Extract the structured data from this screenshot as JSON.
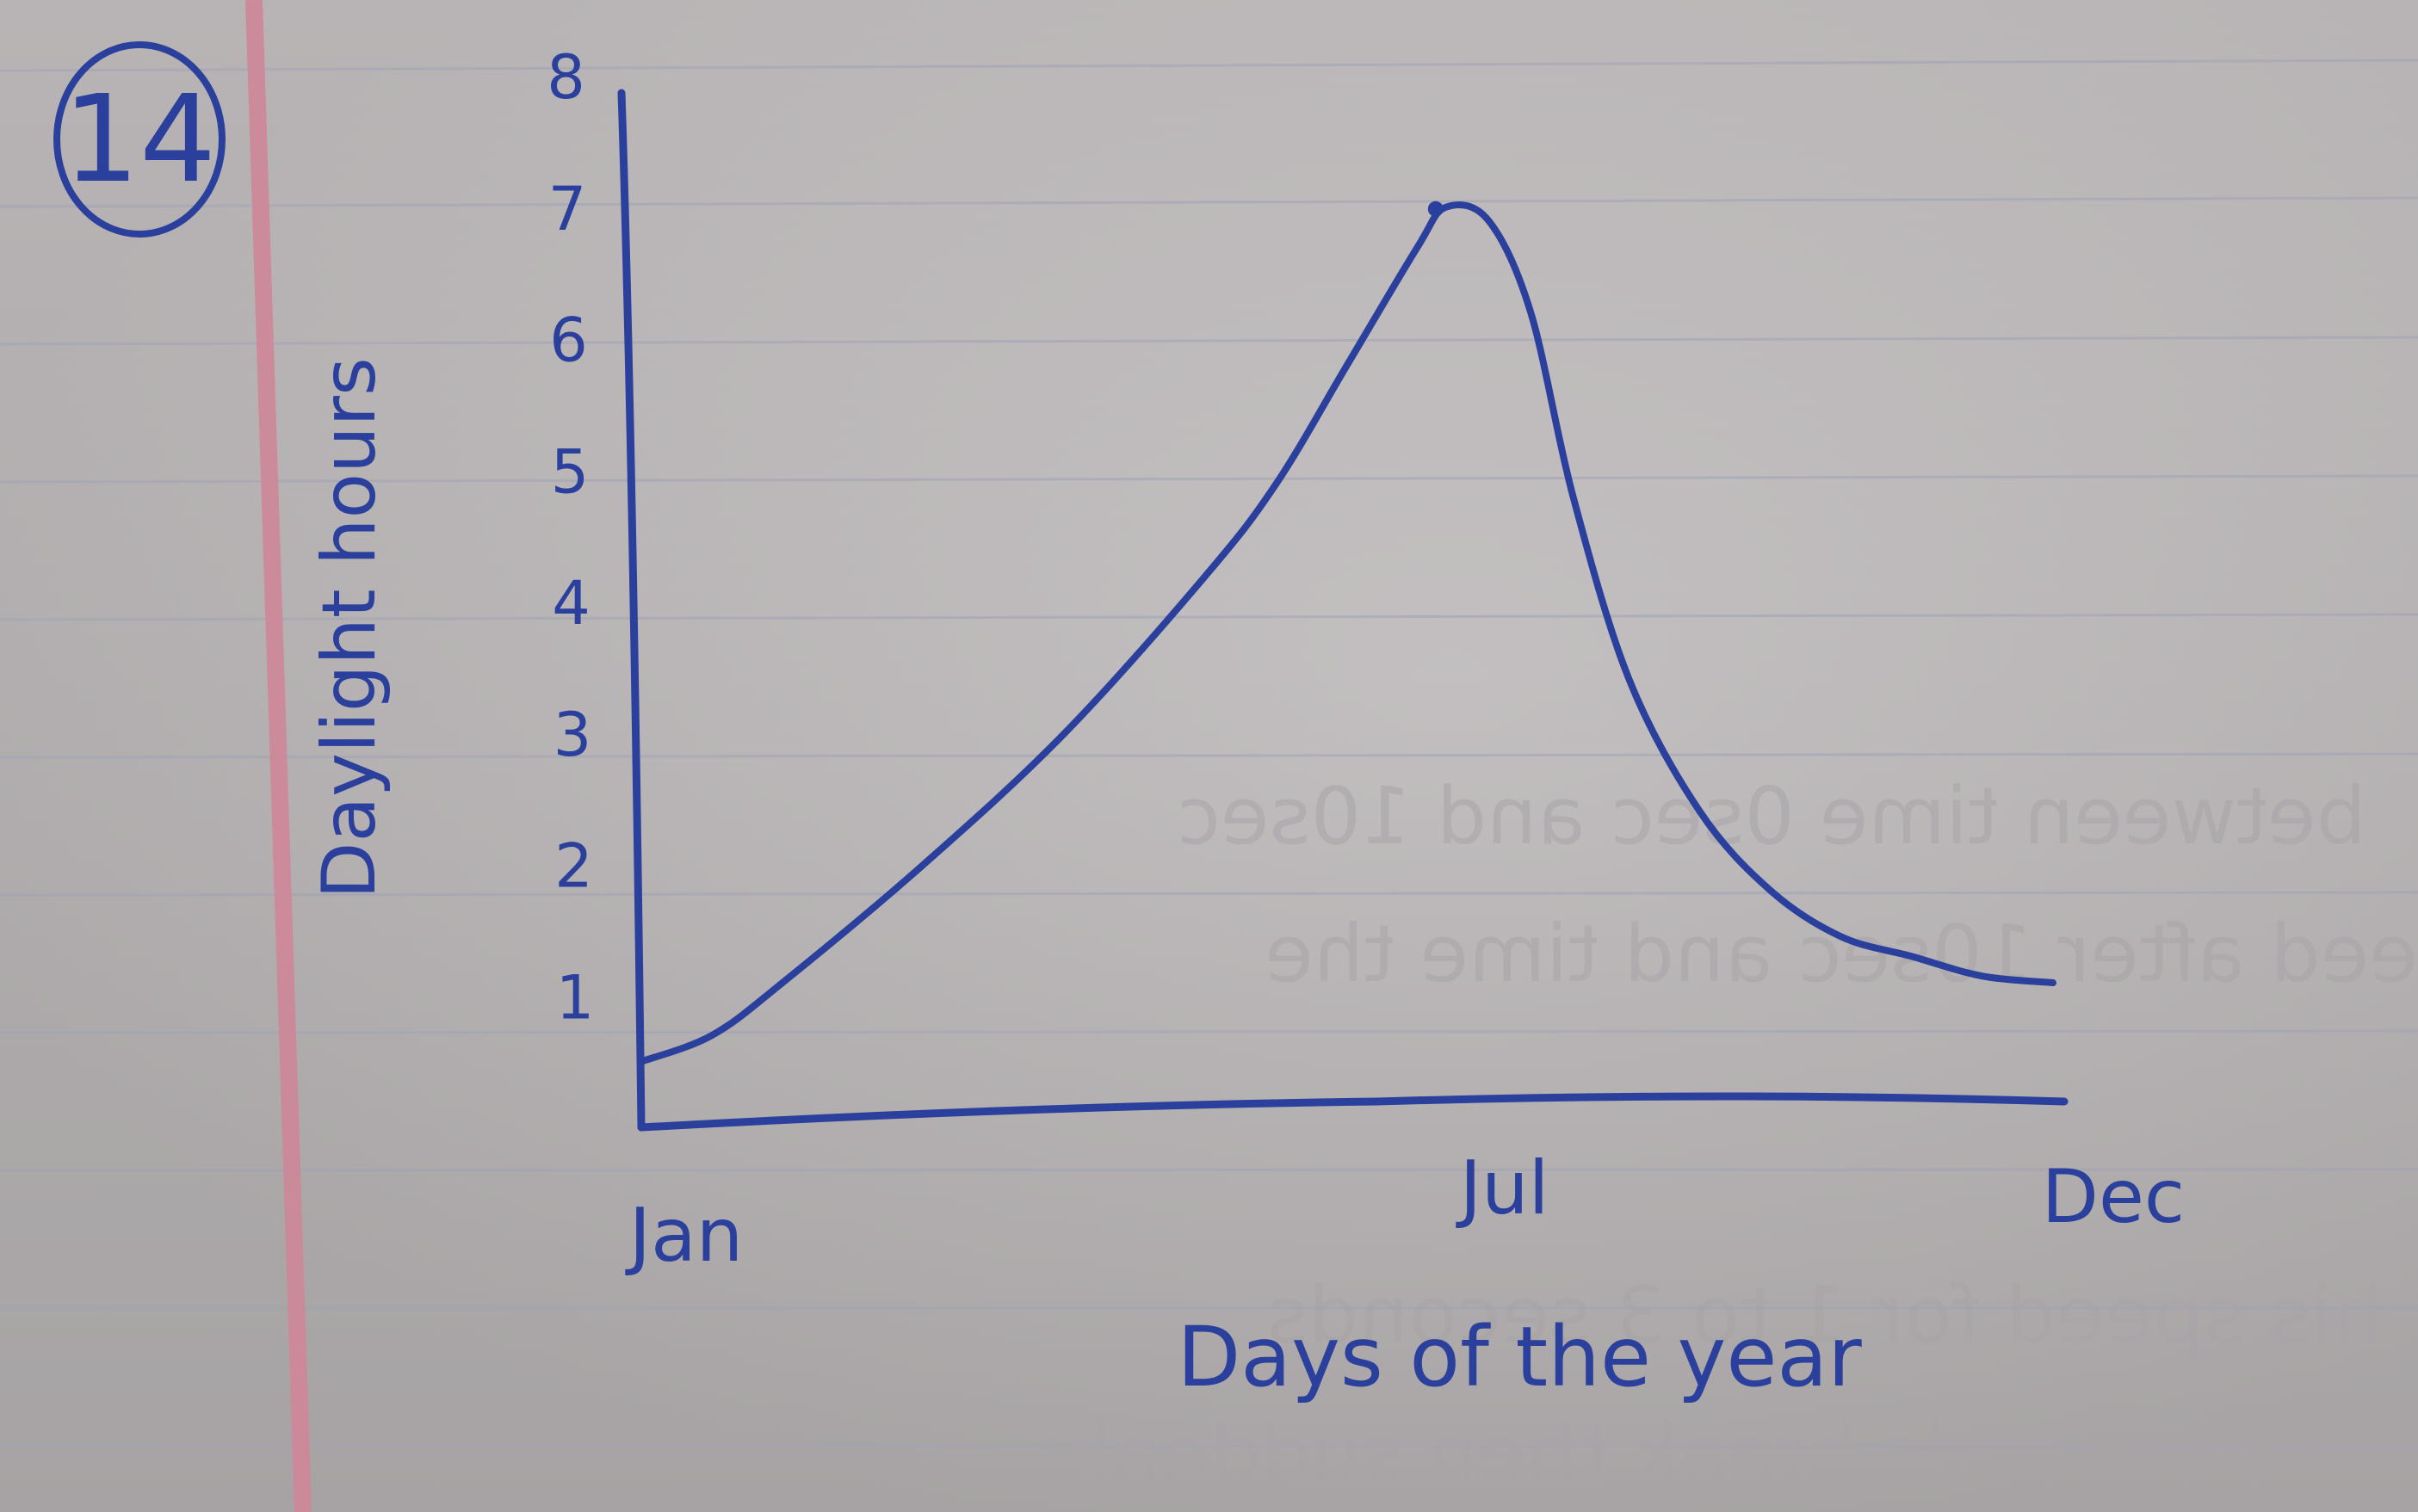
{
  "problem_number": "14",
  "ink_color": "#2b3f9c",
  "margin_color": "#cf8798",
  "chart_data": {
    "type": "line",
    "title": "",
    "xlabel": "Days of the year",
    "ylabel": "Daylight hours",
    "x_tick_labels": [
      "Jan",
      "Jul",
      "Dec"
    ],
    "x_tick_positions": [
      0,
      0.59,
      1
    ],
    "y_ticks": [
      1,
      2,
      3,
      4,
      5,
      6,
      7,
      8
    ],
    "y_range": [
      0,
      8
    ],
    "x_range": [
      0,
      1
    ],
    "grid": false,
    "legend": "none",
    "series": [
      {
        "x": [
          0,
          0.05,
          0.1,
          0.2,
          0.3,
          0.4,
          0.45,
          0.5,
          0.55,
          0.57,
          0.6,
          0.63,
          0.66,
          0.7,
          0.75,
          0.8,
          0.85,
          0.9,
          0.95,
          1.0
        ],
        "values": [
          0.5,
          0.7,
          1.1,
          2.0,
          3.0,
          4.2,
          4.9,
          5.8,
          6.7,
          7.0,
          6.9,
          6.2,
          4.8,
          3.4,
          2.4,
          1.8,
          1.45,
          1.3,
          1.15,
          1.1
        ]
      }
    ]
  },
  "bleed_through": {
    "line1": "between time 0sec and 10sec",
    "line2": "eed after 10sec and time the",
    "line3": "his speed for 1 to 3 seconds",
    "line4": "13 seconds break then suddenly"
  }
}
